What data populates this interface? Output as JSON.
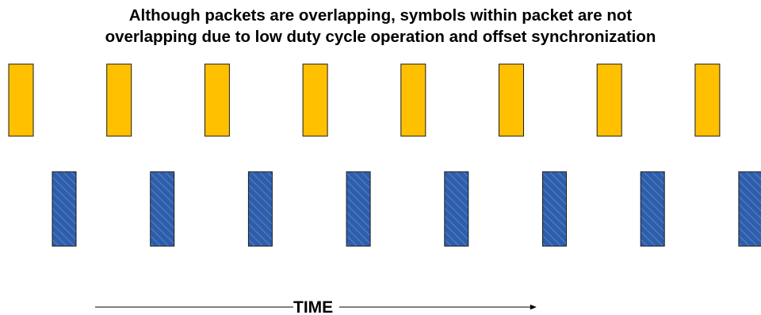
{
  "title": {
    "line1": "Although packets are overlapping, symbols within packet are not",
    "line2": "overlapping due to low duty cycle operation and offset synchronization"
  },
  "rows": [
    {
      "name": "row-1",
      "fill": "#FFC000",
      "pattern": "solid",
      "symbol_count": 8
    },
    {
      "name": "row-2",
      "fill": "#2E5EAA",
      "pattern": "hatched",
      "symbol_count": 8
    }
  ],
  "time_axis": {
    "label": "TIME"
  }
}
